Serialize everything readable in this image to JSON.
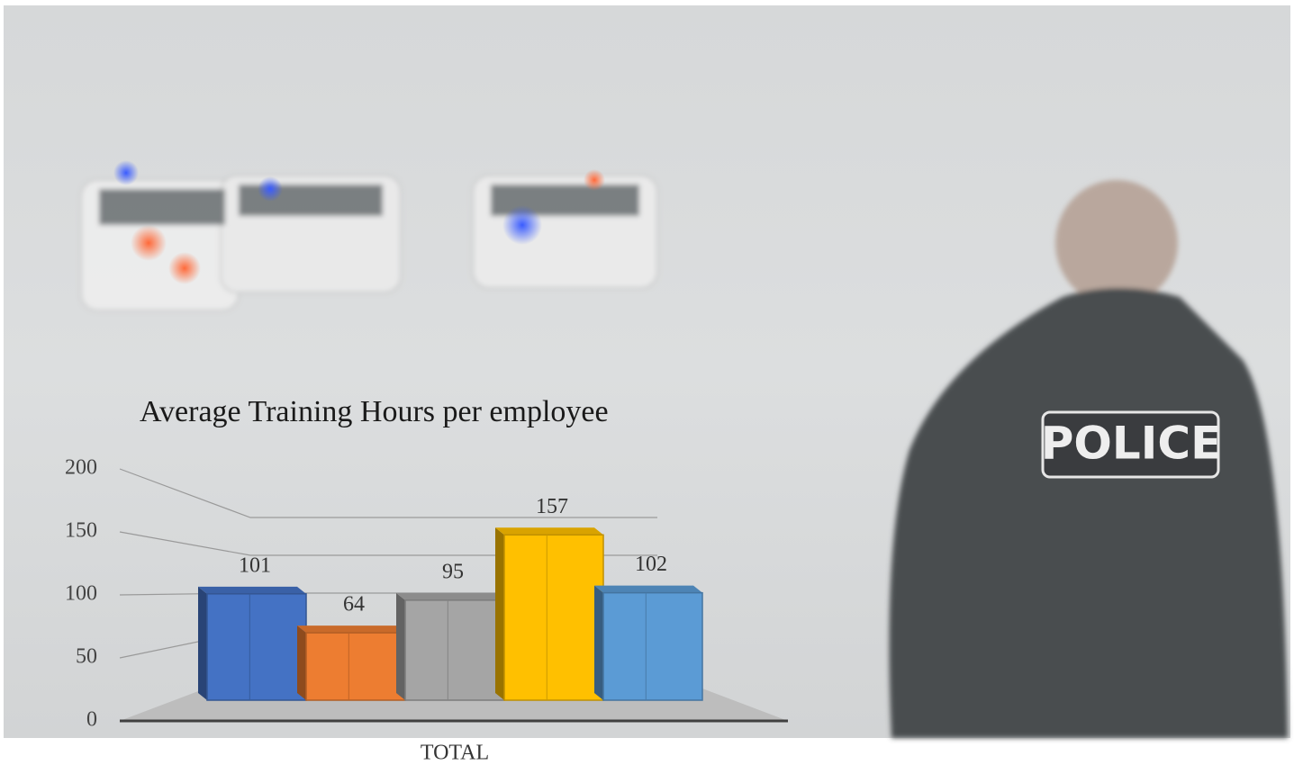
{
  "chart_data": {
    "type": "bar3d",
    "title": "Average Training Hours per employee",
    "categories": [
      "TOTAL"
    ],
    "series": [
      {
        "color": "#4472c4",
        "values": [
          101
        ]
      },
      {
        "color": "#ed7d31",
        "values": [
          64
        ]
      },
      {
        "color": "#a5a5a5",
        "values": [
          95
        ]
      },
      {
        "color": "#ffc000",
        "values": [
          157
        ]
      },
      {
        "color": "#5b9bd5",
        "values": [
          102
        ]
      }
    ],
    "ylim": [
      0,
      200
    ],
    "yticks": [
      0,
      50,
      100,
      150,
      200
    ],
    "grid": true
  }
}
